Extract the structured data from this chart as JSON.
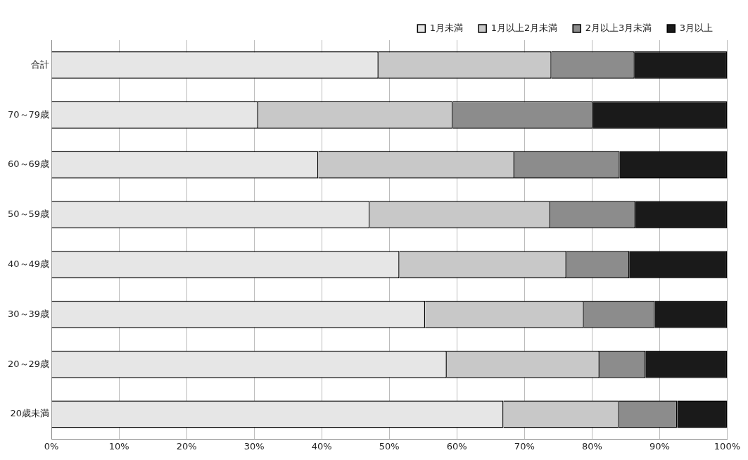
{
  "chart_data": {
    "type": "bar",
    "orientation": "horizontal",
    "stacked": true,
    "categories": [
      "合計",
      "70～79歳",
      "60～69歳",
      "50～59歳",
      "40～49歳",
      "30～39歳",
      "20～29歳",
      "20歳未満"
    ],
    "series": [
      {
        "name": "1月未満",
        "color": "#e6e6e6",
        "values": [
          48.4,
          30.6,
          39.5,
          47.1,
          51.5,
          55.3,
          58.5,
          66.9
        ]
      },
      {
        "name": "1月以上2月未満",
        "color": "#c8c8c8",
        "values": [
          25.6,
          28.8,
          29.0,
          26.7,
          24.7,
          23.5,
          22.6,
          17.1
        ]
      },
      {
        "name": "2月以上3月未満",
        "color": "#8c8c8c",
        "values": [
          12.3,
          20.7,
          15.6,
          12.6,
          9.3,
          10.5,
          6.8,
          8.6
        ]
      },
      {
        "name": "3月以上",
        "color": "#1a1a1a",
        "values": [
          13.7,
          19.9,
          15.9,
          13.6,
          14.5,
          10.7,
          12.1,
          7.4
        ]
      }
    ],
    "xlim": [
      0,
      100
    ],
    "xticks": [
      {
        "value": 0,
        "label": "0%"
      },
      {
        "value": 10,
        "label": "10%"
      },
      {
        "value": 20,
        "label": "20%"
      },
      {
        "value": 30,
        "label": "30%"
      },
      {
        "value": 40,
        "label": "40%"
      },
      {
        "value": 50,
        "label": "50%"
      },
      {
        "value": 60,
        "label": "60%"
      },
      {
        "value": 70,
        "label": "70%"
      },
      {
        "value": 80,
        "label": "80%"
      },
      {
        "value": 90,
        "label": "90%"
      },
      {
        "value": 100,
        "label": "100%"
      }
    ],
    "grid": "x",
    "legend": "top right"
  }
}
